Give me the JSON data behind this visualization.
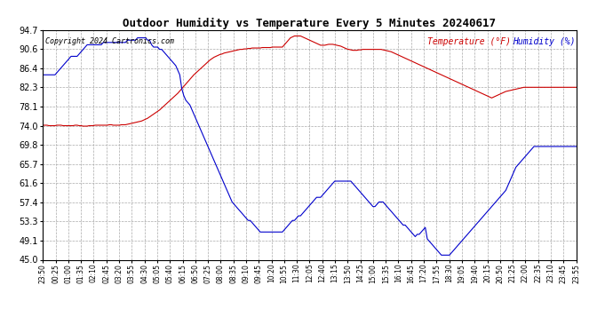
{
  "title": "Outdoor Humidity vs Temperature Every 5 Minutes 20240617",
  "copyright": "Copyright 2024 Cartronics.com",
  "legend_temp": "Temperature (°F)",
  "legend_hum": "Humidity (%)",
  "background_color": "#ffffff",
  "grid_color": "#aaaaaa",
  "temp_color": "#cc0000",
  "hum_color": "#0000cc",
  "ylim": [
    45.0,
    94.7
  ],
  "yticks": [
    45.0,
    49.1,
    53.3,
    57.4,
    61.6,
    65.7,
    69.8,
    74.0,
    78.1,
    82.3,
    86.4,
    90.6,
    94.7
  ],
  "x_labels": [
    "23:50",
    "00:25",
    "01:00",
    "01:35",
    "02:10",
    "02:45",
    "03:20",
    "03:55",
    "04:30",
    "05:05",
    "05:40",
    "06:15",
    "06:50",
    "07:25",
    "08:00",
    "08:35",
    "09:10",
    "09:45",
    "10:20",
    "10:55",
    "11:30",
    "12:05",
    "12:40",
    "13:15",
    "13:50",
    "14:25",
    "15:00",
    "15:35",
    "16:10",
    "16:45",
    "17:20",
    "17:55",
    "18:30",
    "19:05",
    "19:40",
    "20:15",
    "20:50",
    "21:25",
    "22:00",
    "22:35",
    "23:10",
    "23:45",
    "23:55"
  ],
  "n_points": 288,
  "temp_data": [
    74.1,
    74.1,
    74.1,
    74.0,
    74.0,
    74.0,
    74.0,
    74.1,
    74.1,
    74.1,
    74.0,
    74.0,
    74.0,
    74.0,
    74.0,
    74.0,
    74.1,
    74.1,
    74.0,
    74.0,
    73.9,
    73.9,
    73.9,
    74.0,
    74.0,
    74.0,
    74.1,
    74.1,
    74.1,
    74.1,
    74.1,
    74.1,
    74.1,
    74.2,
    74.2,
    74.1,
    74.1,
    74.1,
    74.1,
    74.2,
    74.2,
    74.2,
    74.3,
    74.4,
    74.5,
    74.6,
    74.7,
    74.8,
    74.9,
    75.0,
    75.2,
    75.4,
    75.6,
    75.9,
    76.2,
    76.5,
    76.8,
    77.1,
    77.4,
    77.8,
    78.2,
    78.6,
    79.0,
    79.4,
    79.8,
    80.2,
    80.6,
    81.0,
    81.5,
    82.0,
    82.5,
    83.0,
    83.5,
    84.0,
    84.5,
    85.0,
    85.4,
    85.8,
    86.2,
    86.6,
    87.0,
    87.4,
    87.8,
    88.2,
    88.5,
    88.8,
    89.0,
    89.2,
    89.4,
    89.5,
    89.7,
    89.8,
    89.9,
    90.0,
    90.1,
    90.2,
    90.3,
    90.4,
    90.5,
    90.5,
    90.6,
    90.6,
    90.7,
    90.7,
    90.8,
    90.8,
    90.8,
    90.8,
    90.8,
    90.9,
    90.9,
    90.9,
    90.9,
    90.9,
    91.0,
    91.0,
    91.0,
    91.0,
    91.0,
    91.0,
    91.5,
    92.0,
    92.5,
    93.0,
    93.2,
    93.4,
    93.4,
    93.4,
    93.4,
    93.2,
    93.0,
    92.8,
    92.6,
    92.4,
    92.2,
    92.0,
    91.8,
    91.6,
    91.4,
    91.4,
    91.4,
    91.5,
    91.6,
    91.6,
    91.6,
    91.5,
    91.4,
    91.3,
    91.2,
    91.0,
    90.8,
    90.6,
    90.5,
    90.4,
    90.3,
    90.3,
    90.3,
    90.4,
    90.4,
    90.5,
    90.5,
    90.5,
    90.5,
    90.5,
    90.5,
    90.5,
    90.5,
    90.5,
    90.5,
    90.4,
    90.3,
    90.2,
    90.1,
    90.0,
    89.8,
    89.6,
    89.4,
    89.2,
    89.0,
    88.8,
    88.6,
    88.4,
    88.2,
    88.0,
    87.8,
    87.6,
    87.4,
    87.2,
    87.0,
    86.8,
    86.6,
    86.4,
    86.2,
    86.0,
    85.8,
    85.6,
    85.4,
    85.2,
    85.0,
    84.8,
    84.6,
    84.4,
    84.2,
    84.0,
    83.8,
    83.6,
    83.4,
    83.2,
    83.0,
    82.8,
    82.6,
    82.4,
    82.2,
    82.0,
    81.8,
    81.6,
    81.4,
    81.2,
    81.0,
    80.8,
    80.6,
    80.4,
    80.2,
    80.0,
    80.2,
    80.4,
    80.6,
    80.8,
    81.0,
    81.2,
    81.4,
    81.5,
    81.6,
    81.7,
    81.8,
    81.9,
    82.0,
    82.1,
    82.2,
    82.3,
    82.3,
    82.3,
    82.3,
    82.3,
    82.3,
    82.3,
    82.3,
    82.3,
    82.3,
    82.3,
    82.3,
    82.3,
    82.3,
    82.3,
    82.3,
    82.3,
    82.3,
    82.3,
    82.3,
    82.3,
    82.3,
    82.3,
    82.3,
    82.3,
    82.3,
    82.3,
    82.3,
    82.3,
    82.3,
    82.3,
    82.3,
    82.3,
    82.3,
    82.3,
    82.3,
    82.3,
    82.3,
    82.3,
    82.3,
    82.3,
    82.3,
    82.3,
    82.3,
    82.3,
    82.3,
    82.3,
    82.3,
    82.3
  ],
  "hum_data": [
    85.0,
    85.0,
    85.0,
    85.0,
    85.0,
    85.0,
    85.0,
    85.5,
    86.0,
    86.5,
    87.0,
    87.5,
    88.0,
    88.5,
    89.0,
    89.0,
    89.0,
    89.0,
    89.5,
    90.0,
    90.5,
    91.0,
    91.5,
    91.5,
    91.5,
    91.5,
    91.5,
    91.5,
    91.5,
    91.5,
    92.0,
    92.0,
    92.0,
    92.0,
    92.0,
    92.0,
    92.0,
    92.0,
    92.0,
    92.0,
    92.0,
    92.0,
    92.5,
    92.5,
    92.5,
    92.5,
    92.5,
    93.0,
    93.0,
    93.0,
    93.0,
    93.0,
    92.5,
    92.5,
    91.5,
    91.0,
    91.0,
    91.0,
    90.5,
    90.5,
    90.0,
    89.5,
    89.0,
    88.5,
    88.0,
    87.5,
    87.0,
    86.0,
    85.0,
    82.0,
    80.5,
    79.5,
    79.0,
    78.5,
    77.5,
    76.5,
    75.5,
    74.5,
    73.5,
    72.5,
    71.5,
    70.5,
    69.5,
    68.5,
    67.5,
    66.5,
    65.5,
    64.5,
    63.5,
    62.5,
    61.5,
    60.5,
    59.5,
    58.5,
    57.5,
    57.0,
    56.5,
    56.0,
    55.5,
    55.0,
    54.5,
    54.0,
    53.5,
    53.5,
    53.0,
    52.5,
    52.0,
    51.5,
    51.0,
    51.0,
    51.0,
    51.0,
    51.0,
    51.0,
    51.0,
    51.0,
    51.0,
    51.0,
    51.0,
    51.0,
    51.5,
    52.0,
    52.5,
    53.0,
    53.5,
    53.5,
    54.0,
    54.5,
    54.5,
    55.0,
    55.5,
    56.0,
    56.5,
    57.0,
    57.5,
    58.0,
    58.5,
    58.5,
    58.5,
    59.0,
    59.5,
    60.0,
    60.5,
    61.0,
    61.5,
    62.0,
    62.0,
    62.0,
    62.0,
    62.0,
    62.0,
    62.0,
    62.0,
    62.0,
    61.5,
    61.0,
    60.5,
    60.0,
    59.5,
    59.0,
    58.5,
    58.0,
    57.5,
    57.0,
    56.5,
    56.5,
    57.0,
    57.5,
    57.5,
    57.5,
    57.0,
    56.5,
    56.0,
    55.5,
    55.0,
    54.5,
    54.0,
    53.5,
    53.0,
    52.5,
    52.5,
    52.0,
    51.5,
    51.0,
    50.5,
    50.0,
    50.5,
    50.5,
    51.0,
    51.5,
    52.0,
    49.5,
    49.0,
    48.5,
    48.0,
    47.5,
    47.0,
    46.5,
    46.0,
    46.0,
    46.0,
    46.0,
    46.0,
    46.5,
    47.0,
    47.5,
    48.0,
    48.5,
    49.0,
    49.5,
    50.0,
    50.5,
    51.0,
    51.5,
    52.0,
    52.5,
    53.0,
    53.5,
    54.0,
    54.5,
    55.0,
    55.5,
    56.0,
    56.5,
    57.0,
    57.5,
    58.0,
    58.5,
    59.0,
    59.5,
    60.0,
    61.0,
    62.0,
    63.0,
    64.0,
    65.0,
    65.5,
    66.0,
    66.5,
    67.0,
    67.5,
    68.0,
    68.5,
    69.0,
    69.5,
    69.5,
    69.5,
    69.5,
    69.5,
    69.5,
    69.5,
    69.5,
    69.5,
    69.5,
    69.5,
    69.5,
    69.5,
    69.5,
    69.5,
    69.5,
    69.5,
    69.5,
    69.5,
    69.5,
    69.5,
    69.5
  ]
}
